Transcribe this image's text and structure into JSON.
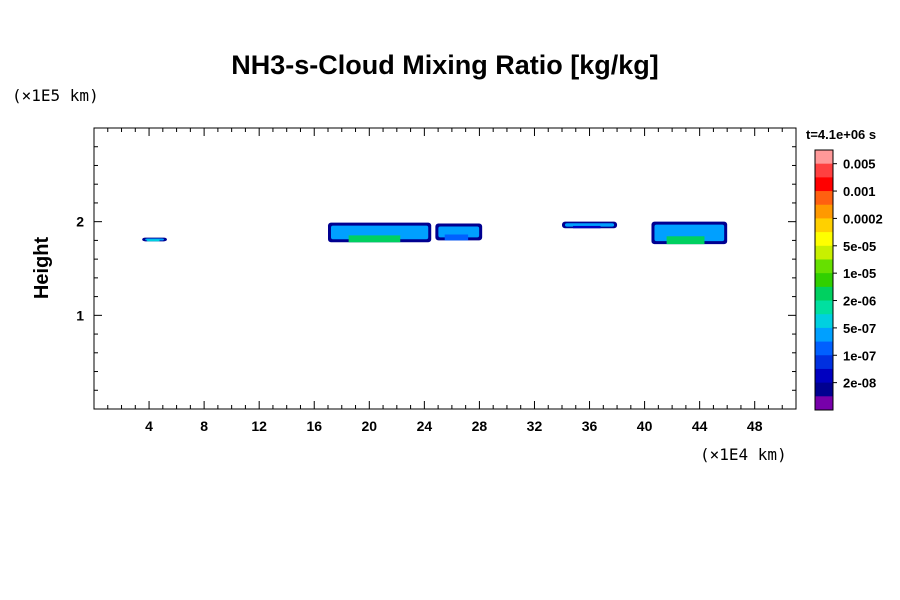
{
  "chart_data": {
    "type": "heatmap",
    "title": "NH3-s-Cloud Mixing Ratio [kg/kg]",
    "ylabel": "Height",
    "x_unit": "(×1E4 km)",
    "y_unit": "(×1E5 km)",
    "time_label": "t=4.1e+06 s",
    "xlim": [
      0,
      51
    ],
    "ylim": [
      0,
      3
    ],
    "x_ticks": [
      4,
      8,
      12,
      16,
      20,
      24,
      28,
      32,
      36,
      40,
      44,
      48
    ],
    "y_ticks": [
      1,
      2
    ],
    "colorbar": {
      "labels": [
        "0.005",
        "0.001",
        "0.0002",
        "5e-05",
        "1e-05",
        "2e-06",
        "5e-07",
        "1e-07",
        "2e-08"
      ],
      "colors": [
        "#ff9999",
        "#ff4040",
        "#ff0000",
        "#ff6010",
        "#ff9900",
        "#ffd000",
        "#ffff00",
        "#c8f000",
        "#66e000",
        "#30d000",
        "#00d060",
        "#00e0a0",
        "#00d0e0",
        "#00a0ff",
        "#0060ff",
        "#0030e0",
        "#0000c0",
        "#000090",
        "#7700aa"
      ]
    },
    "cloud_patches": [
      {
        "x": [
          17.0,
          24.5
        ],
        "y": [
          1.78,
          1.99
        ],
        "level": "1e-05"
      },
      {
        "x": [
          24.8,
          28.2
        ],
        "y": [
          1.8,
          1.98
        ],
        "level": "5e-07"
      },
      {
        "x": [
          3.5,
          5.3
        ],
        "y": [
          1.79,
          1.83
        ],
        "level": "2e-06"
      },
      {
        "x": [
          34.0,
          38.0
        ],
        "y": [
          1.93,
          2.0
        ],
        "level": "1e-07"
      },
      {
        "x": [
          40.5,
          46.0
        ],
        "y": [
          1.76,
          2.0
        ],
        "level": "1e-05"
      }
    ]
  }
}
